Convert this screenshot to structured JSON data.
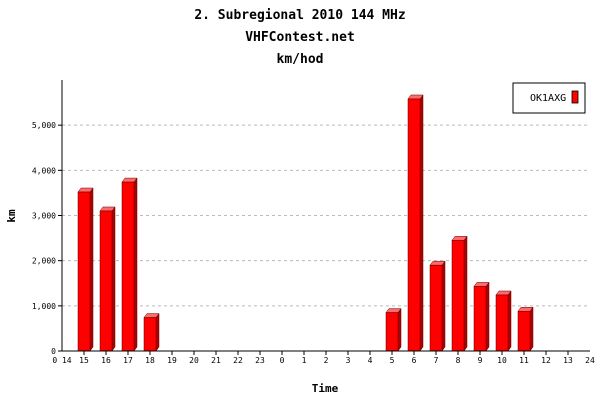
{
  "chart_data": {
    "type": "bar",
    "title": "2. Subregional 2010 144 MHz",
    "subtitle": "VHFContest.net",
    "subtitle2": "km/hod",
    "xlabel": "Time",
    "ylabel": "km",
    "x_axis_start": "0 14",
    "x_axis_end": "24",
    "categories": [
      "15",
      "16",
      "17",
      "18",
      "19",
      "20",
      "21",
      "22",
      "23",
      "0",
      "1",
      "2",
      "3",
      "4",
      "5",
      "6",
      "7",
      "8",
      "9",
      "10",
      "11",
      "12",
      "13"
    ],
    "series": [
      {
        "name": "OK1AXG",
        "values": [
          3520,
          3100,
          3740,
          740,
          0,
          0,
          0,
          0,
          0,
          0,
          0,
          0,
          0,
          0,
          850,
          5580,
          1900,
          2450,
          1430,
          1240,
          880,
          0,
          0
        ]
      }
    ],
    "ylim": [
      0,
      6000
    ],
    "yticks": [
      0,
      1000,
      2000,
      3000,
      4000,
      5000
    ],
    "ytick_labels": [
      "0",
      "1,000",
      "2,000",
      "3,000",
      "4,000",
      "5,000"
    ],
    "grid": true,
    "legend_position": "top-right",
    "colors": {
      "bar_front": "#ff0000",
      "bar_side": "#b00000",
      "bar_top": "#ff6a6a",
      "grid": "#bbbbbb"
    }
  }
}
